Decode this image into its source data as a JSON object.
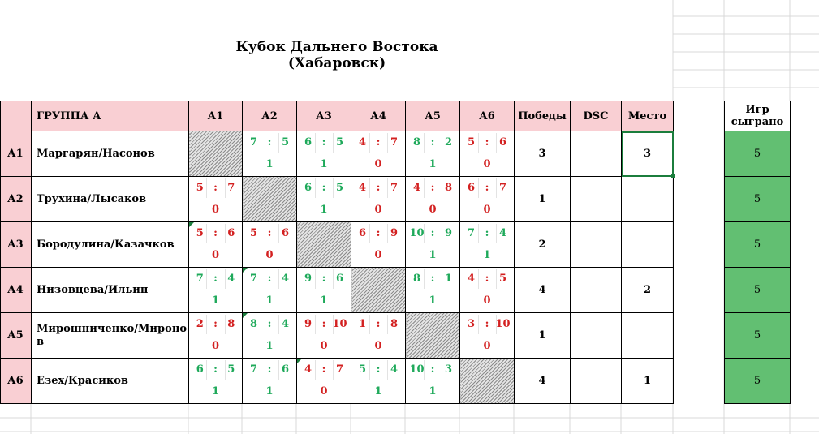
{
  "title": "Кубок Дальнего Востока (Хабаровск)",
  "header": {
    "group": "ГРУППА А",
    "cols": [
      "А1",
      "А2",
      "А3",
      "А4",
      "А5",
      "А6"
    ],
    "wins": "Победы",
    "dsc": "DSC",
    "place": "Место",
    "games": "Игр сыграно"
  },
  "colors": {
    "win": "#1ea95a",
    "loss": "#d32020",
    "header_bg": "#f9cfd3",
    "games_bg": "#62bf72"
  },
  "rows": [
    {
      "id": "А1",
      "name": "Маргарян/Насонов",
      "wins": "3",
      "dsc": "",
      "place": "3",
      "games": "5",
      "cells": [
        null,
        {
          "a": "7",
          "b": "5",
          "p": "1"
        },
        {
          "a": "6",
          "b": "5",
          "p": "1"
        },
        {
          "a": "4",
          "b": "7",
          "p": "0"
        },
        {
          "a": "8",
          "b": "2",
          "p": "1"
        },
        {
          "a": "5",
          "b": "6",
          "p": "0"
        }
      ]
    },
    {
      "id": "А2",
      "name": "Трухина/Лысаков",
      "wins": "1",
      "dsc": "",
      "place": "",
      "games": "5",
      "cells": [
        {
          "a": "5",
          "b": "7",
          "p": "0"
        },
        null,
        {
          "a": "6",
          "b": "5",
          "p": "1"
        },
        {
          "a": "4",
          "b": "7",
          "p": "0"
        },
        {
          "a": "4",
          "b": "8",
          "p": "0"
        },
        {
          "a": "6",
          "b": "7",
          "p": "0"
        }
      ]
    },
    {
      "id": "А3",
      "name": "Бородулина/Казачков",
      "wins": "2",
      "dsc": "",
      "place": "",
      "games": "5",
      "cells": [
        {
          "a": "5",
          "b": "6",
          "p": "0"
        },
        {
          "a": "5",
          "b": "6",
          "p": "0"
        },
        null,
        {
          "a": "6",
          "b": "9",
          "p": "0"
        },
        {
          "a": "10",
          "b": "9",
          "p": "1"
        },
        {
          "a": "7",
          "b": "4",
          "p": "1"
        }
      ]
    },
    {
      "id": "А4",
      "name": "Низовцева/Ильин",
      "wins": "4",
      "dsc": "",
      "place": "2",
      "games": "5",
      "cells": [
        {
          "a": "7",
          "b": "4",
          "p": "1"
        },
        {
          "a": "7",
          "b": "4",
          "p": "1"
        },
        {
          "a": "9",
          "b": "6",
          "p": "1"
        },
        null,
        {
          "a": "8",
          "b": "1",
          "p": "1"
        },
        {
          "a": "4",
          "b": "5",
          "p": "0"
        }
      ]
    },
    {
      "id": "А5",
      "name": "Мирошниченко/Миронов",
      "wins": "1",
      "dsc": "",
      "place": "",
      "games": "5",
      "cells": [
        {
          "a": "2",
          "b": "8",
          "p": "0"
        },
        {
          "a": "8",
          "b": "4",
          "p": "1"
        },
        {
          "a": "9",
          "b": "10",
          "p": "0"
        },
        {
          "a": "1",
          "b": "8",
          "p": "0"
        },
        null,
        {
          "a": "3",
          "b": "10",
          "p": "0"
        }
      ]
    },
    {
      "id": "А6",
      "name": "Езех/Красиков",
      "wins": "4",
      "dsc": "",
      "place": "1",
      "games": "5",
      "cells": [
        {
          "a": "6",
          "b": "5",
          "p": "1"
        },
        {
          "a": "7",
          "b": "6",
          "p": "1"
        },
        {
          "a": "4",
          "b": "7",
          "p": "0"
        },
        {
          "a": "5",
          "b": "4",
          "p": "1"
        },
        {
          "a": "10",
          "b": "3",
          "p": "1"
        },
        null
      ]
    }
  ]
}
